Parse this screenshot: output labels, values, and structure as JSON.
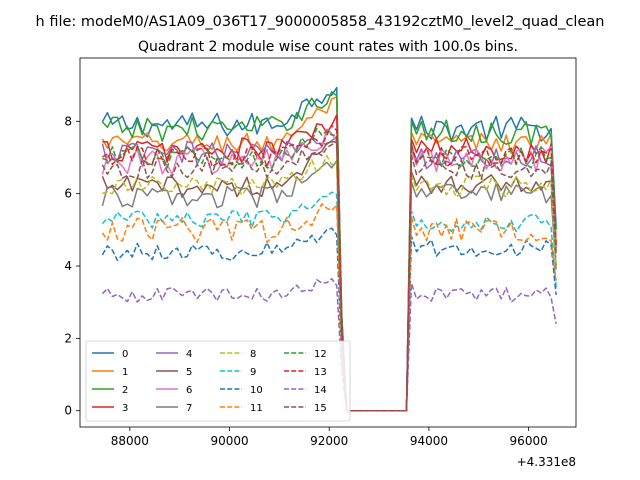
{
  "figure": {
    "suptitle": "h file: modeM0/AS1A09_036T17_9000005858_43192cztM0_level2_quad_clean",
    "title": "Quadrant 2 module wise count rates with 100.0s bins.",
    "offset_text": "+4.331e8"
  },
  "colors": {
    "c0": "#1f77b4",
    "c1": "#ff7f0e",
    "c2": "#2ca02c",
    "c3": "#d62728",
    "c4": "#9467bd",
    "c5": "#8c564b",
    "c6": "#e377c2",
    "c7": "#7f7f7f",
    "c8": "#bcbd22",
    "c9": "#17becf"
  },
  "chart_data": {
    "type": "line",
    "title": "Quadrant 2 module wise count rates with 100.0s bins.",
    "xlabel": "",
    "ylabel": "",
    "x_offset": 433100000,
    "xlim": [
      87000,
      96950
    ],
    "ylim": [
      -0.45,
      9.75
    ],
    "xticks": [
      88000,
      90000,
      92000,
      94000,
      96000
    ],
    "xtick_labels": [
      "88000",
      "90000",
      "92000",
      "94000",
      "96000"
    ],
    "yticks": [
      0,
      2,
      4,
      6,
      8
    ],
    "ytick_labels": [
      "0",
      "2",
      "4",
      "6",
      "8"
    ],
    "grid": false,
    "legend_placement": "lower-left",
    "legend_columns": 4,
    "x_start": 87450,
    "x_step": 100,
    "gap_start": 92350,
    "gap_end": 93550,
    "x_end": 96550,
    "series": [
      {
        "name": "0",
        "color": "#1f77b4",
        "dash": false,
        "pre": 7.9,
        "peak": 9.0,
        "post": 7.8,
        "noise": 0.35,
        "end": 5.1
      },
      {
        "name": "1",
        "color": "#ff7f0e",
        "dash": false,
        "pre": 7.4,
        "peak": 8.5,
        "post": 7.4,
        "noise": 0.3,
        "end": 4.6
      },
      {
        "name": "2",
        "color": "#2ca02c",
        "dash": false,
        "pre": 7.8,
        "peak": 8.8,
        "post": 7.7,
        "noise": 0.35,
        "end": 5.0
      },
      {
        "name": "3",
        "color": "#d62728",
        "dash": false,
        "pre": 7.2,
        "peak": 8.0,
        "post": 7.2,
        "noise": 0.35,
        "end": 4.6
      },
      {
        "name": "4",
        "color": "#9467bd",
        "dash": false,
        "pre": 7.1,
        "peak": 7.7,
        "post": 7.0,
        "noise": 0.35,
        "end": 4.5
      },
      {
        "name": "5",
        "color": "#8c564b",
        "dash": false,
        "pre": 6.2,
        "peak": 7.3,
        "post": 6.3,
        "noise": 0.3,
        "end": 4.0
      },
      {
        "name": "6",
        "color": "#e377c2",
        "dash": false,
        "pre": 6.9,
        "peak": 7.6,
        "post": 6.9,
        "noise": 0.4,
        "end": 4.4
      },
      {
        "name": "7",
        "color": "#7f7f7f",
        "dash": false,
        "pre": 5.9,
        "peak": 6.8,
        "post": 6.0,
        "noise": 0.3,
        "end": 3.9
      },
      {
        "name": "8",
        "color": "#bcbd22",
        "dash": true,
        "pre": 6.2,
        "peak": 7.0,
        "post": 6.2,
        "noise": 0.3,
        "end": 4.0
      },
      {
        "name": "9",
        "color": "#17becf",
        "dash": true,
        "pre": 5.3,
        "peak": 5.9,
        "post": 5.2,
        "noise": 0.25,
        "end": 3.4
      },
      {
        "name": "10",
        "color": "#1f77b4",
        "dash": true,
        "pre": 4.4,
        "peak": 5.0,
        "post": 4.5,
        "noise": 0.25,
        "end": 3.2
      },
      {
        "name": "11",
        "color": "#ff7f0e",
        "dash": true,
        "pre": 5.0,
        "peak": 5.6,
        "post": 5.0,
        "noise": 0.35,
        "end": 3.6
      },
      {
        "name": "12",
        "color": "#2ca02c",
        "dash": true,
        "pre": 7.0,
        "peak": 7.8,
        "post": 7.0,
        "noise": 0.3,
        "end": 4.5
      },
      {
        "name": "13",
        "color": "#d62728",
        "dash": true,
        "pre": 7.0,
        "peak": 7.7,
        "post": 7.0,
        "noise": 0.3,
        "end": 4.5
      },
      {
        "name": "14",
        "color": "#9467bd",
        "dash": true,
        "pre": 3.2,
        "peak": 3.6,
        "post": 3.2,
        "noise": 0.2,
        "end": 2.4
      },
      {
        "name": "15",
        "color": "#8c564b",
        "dash": true,
        "pre": 6.7,
        "peak": 7.4,
        "post": 6.7,
        "noise": 0.3,
        "end": 4.3
      }
    ]
  }
}
